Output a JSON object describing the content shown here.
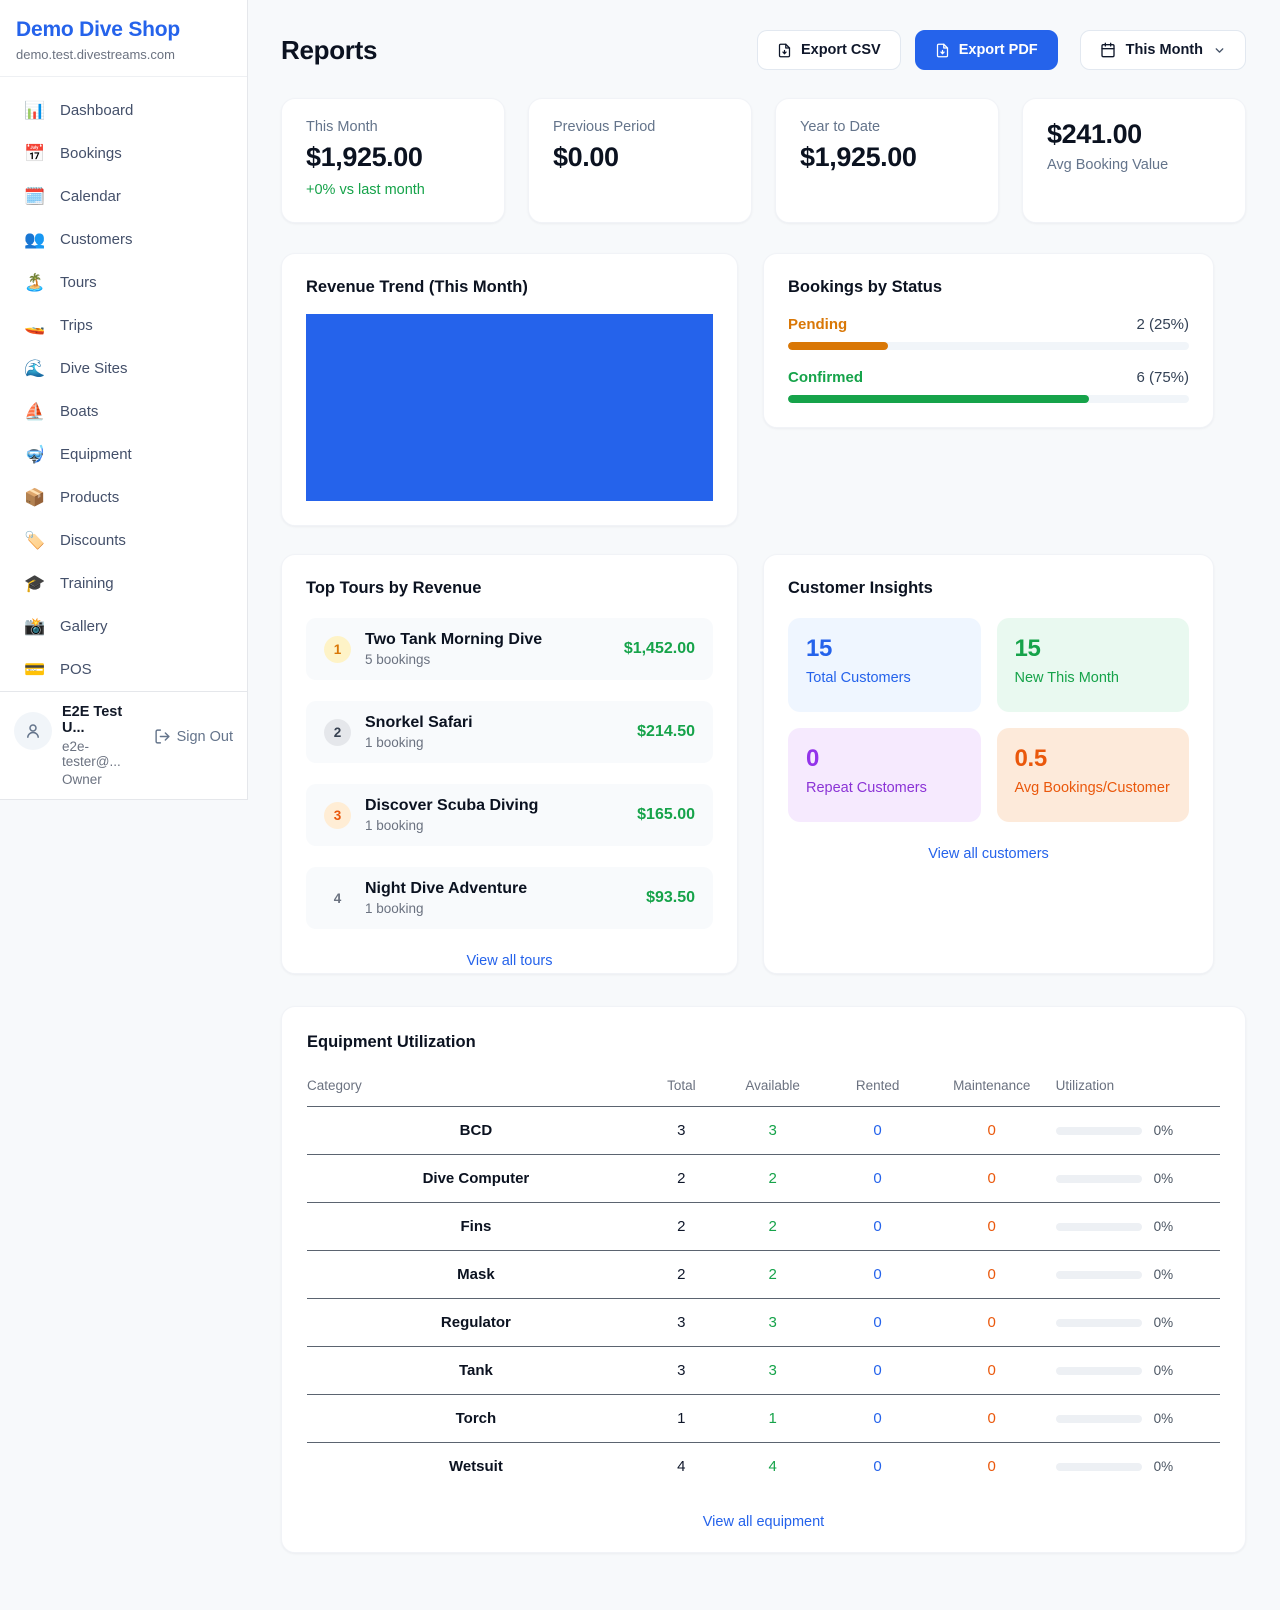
{
  "sidebar": {
    "shop_name": "Demo Dive Shop",
    "domain": "demo.test.divestreams.com",
    "items": [
      {
        "icon": "📊",
        "label": "Dashboard"
      },
      {
        "icon": "📅",
        "label": "Bookings"
      },
      {
        "icon": "🗓️",
        "label": "Calendar"
      },
      {
        "icon": "👥",
        "label": "Customers"
      },
      {
        "icon": "🏝️",
        "label": "Tours"
      },
      {
        "icon": "🚤",
        "label": "Trips"
      },
      {
        "icon": "🌊",
        "label": "Dive Sites"
      },
      {
        "icon": "⛵",
        "label": "Boats"
      },
      {
        "icon": "🤿",
        "label": "Equipment"
      },
      {
        "icon": "📦",
        "label": "Products"
      },
      {
        "icon": "🏷️",
        "label": "Discounts"
      },
      {
        "icon": "🎓",
        "label": "Training"
      },
      {
        "icon": "📸",
        "label": "Gallery"
      },
      {
        "icon": "💳",
        "label": "POS"
      }
    ],
    "user": {
      "name": "E2E Test U...",
      "email": "e2e-tester@...",
      "role": "Owner",
      "sign_out": "Sign Out"
    }
  },
  "header": {
    "title": "Reports",
    "export_csv": "Export CSV",
    "export_pdf": "Export PDF",
    "period": "This Month"
  },
  "stats": {
    "this_month": {
      "label": "This Month",
      "value": "$1,925.00",
      "delta": "+0% vs last month"
    },
    "previous_period": {
      "label": "Previous Period",
      "value": "$0.00"
    },
    "year_to_date": {
      "label": "Year to Date",
      "value": "$1,925.00"
    },
    "avg_booking": {
      "value": "$241.00",
      "label": "Avg Booking Value"
    }
  },
  "revenue_trend": {
    "title": "Revenue Trend (This Month)",
    "bar_color": "#2563eb"
  },
  "bookings_by_status": {
    "title": "Bookings by Status",
    "rows": [
      {
        "label": "Pending",
        "count": "2 (25%)",
        "width": "25%",
        "color": "#d97706"
      },
      {
        "label": "Confirmed",
        "count": "6 (75%)",
        "width": "75%",
        "color": "#16a34a"
      }
    ]
  },
  "top_tours": {
    "title": "Top Tours by Revenue",
    "rows": [
      {
        "rank": "1",
        "name": "Two Tank Morning Dive",
        "bookings": "5 bookings",
        "revenue": "$1,452.00"
      },
      {
        "rank": "2",
        "name": "Snorkel Safari",
        "bookings": "1 booking",
        "revenue": "$214.50"
      },
      {
        "rank": "3",
        "name": "Discover Scuba Diving",
        "bookings": "1 booking",
        "revenue": "$165.00"
      },
      {
        "rank": "4",
        "name": "Night Dive Adventure",
        "bookings": "1 booking",
        "revenue": "$93.50"
      }
    ],
    "link": "View all tours"
  },
  "customer_insights": {
    "title": "Customer Insights",
    "boxes": [
      {
        "value": "15",
        "label": "Total Customers",
        "accent": "#2563eb"
      },
      {
        "value": "15",
        "label": "New This Month",
        "accent": "#16a34a"
      },
      {
        "value": "0",
        "label": "Repeat Customers",
        "accent": "#9333ea"
      },
      {
        "value": "0.5",
        "label": "Avg Bookings/Customer",
        "accent": "#ea580c"
      }
    ],
    "link": "View all customers"
  },
  "equipment": {
    "title": "Equipment Utilization",
    "columns": [
      "Category",
      "Total",
      "Available",
      "Rented",
      "Maintenance",
      "Utilization"
    ],
    "rows": [
      {
        "category": "BCD",
        "total": "3",
        "available": "3",
        "rented": "0",
        "maintenance": "0",
        "utilization": "0%",
        "util_width": "0%"
      },
      {
        "category": "Dive Computer",
        "total": "2",
        "available": "2",
        "rented": "0",
        "maintenance": "0",
        "utilization": "0%",
        "util_width": "0%"
      },
      {
        "category": "Fins",
        "total": "2",
        "available": "2",
        "rented": "0",
        "maintenance": "0",
        "utilization": "0%",
        "util_width": "0%"
      },
      {
        "category": "Mask",
        "total": "2",
        "available": "2",
        "rented": "0",
        "maintenance": "0",
        "utilization": "0%",
        "util_width": "0%"
      },
      {
        "category": "Regulator",
        "total": "3",
        "available": "3",
        "rented": "0",
        "maintenance": "0",
        "utilization": "0%",
        "util_width": "0%"
      },
      {
        "category": "Tank",
        "total": "3",
        "available": "3",
        "rented": "0",
        "maintenance": "0",
        "utilization": "0%",
        "util_width": "0%"
      },
      {
        "category": "Torch",
        "total": "1",
        "available": "1",
        "rented": "0",
        "maintenance": "0",
        "utilization": "0%",
        "util_width": "0%"
      },
      {
        "category": "Wetsuit",
        "total": "4",
        "available": "4",
        "rented": "0",
        "maintenance": "0",
        "utilization": "0%",
        "util_width": "0%"
      }
    ],
    "link": "View all equipment"
  },
  "colors": {
    "primary": "#2563eb",
    "success": "#16a34a",
    "warning": "#d97706",
    "danger_orange": "#ea580c",
    "purple": "#9333ea"
  }
}
